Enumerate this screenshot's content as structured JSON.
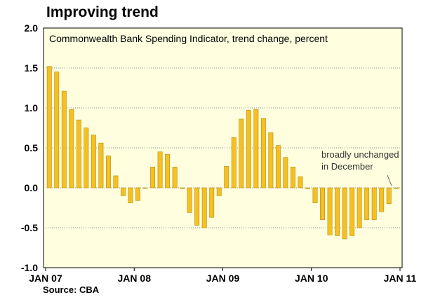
{
  "chart_data": {
    "type": "bar",
    "title": "Improving trend",
    "subtitle": "Commonwealth Bank Spending Indicator, trend change, percent",
    "source": "Source: CBA",
    "annotation": [
      "broadly unchanged",
      "in December"
    ],
    "ylim": [
      -1.0,
      2.0
    ],
    "yticks": [
      "2.0",
      "1.5",
      "1.0",
      "0.5",
      "0.0",
      "-0.5",
      "-1.0"
    ],
    "ytick_values": [
      2.0,
      1.5,
      1.0,
      0.5,
      0.0,
      -0.5,
      -1.0
    ],
    "xticks": [
      "JAN 07",
      "JAN 08",
      "JAN 09",
      "JAN 10",
      "JAN 11"
    ],
    "xtick_positions": [
      0,
      12,
      24,
      36,
      48
    ],
    "grid": true,
    "bar_color": "#F5C023",
    "bar_outline": "#B88A10",
    "plot_background": "#FFFFE0",
    "x": [
      "Jan-07",
      "Feb-07",
      "Mar-07",
      "Apr-07",
      "May-07",
      "Jun-07",
      "Jul-07",
      "Aug-07",
      "Sep-07",
      "Oct-07",
      "Nov-07",
      "Dec-07",
      "Jan-08",
      "Feb-08",
      "Mar-08",
      "Apr-08",
      "May-08",
      "Jun-08",
      "Jul-08",
      "Aug-08",
      "Sep-08",
      "Oct-08",
      "Nov-08",
      "Dec-08",
      "Jan-09",
      "Feb-09",
      "Mar-09",
      "Apr-09",
      "May-09",
      "Jun-09",
      "Jul-09",
      "Aug-09",
      "Sep-09",
      "Oct-09",
      "Nov-09",
      "Dec-09",
      "Jan-10",
      "Feb-10",
      "Mar-10",
      "Apr-10",
      "May-10",
      "Jun-10",
      "Jul-10",
      "Aug-10",
      "Sep-10",
      "Oct-10",
      "Nov-10",
      "Dec-10"
    ],
    "values": [
      1.52,
      1.45,
      1.21,
      0.98,
      0.85,
      0.75,
      0.66,
      0.56,
      0.4,
      0.15,
      -0.1,
      -0.19,
      -0.16,
      0.0,
      0.26,
      0.45,
      0.42,
      0.26,
      -0.01,
      -0.31,
      -0.47,
      -0.5,
      -0.37,
      -0.1,
      0.27,
      0.63,
      0.86,
      0.97,
      0.98,
      0.87,
      0.69,
      0.53,
      0.38,
      0.26,
      0.14,
      -0.01,
      -0.19,
      -0.4,
      -0.59,
      -0.6,
      -0.64,
      -0.6,
      -0.5,
      -0.4,
      -0.4,
      -0.3,
      -0.2,
      -0.01
    ]
  }
}
